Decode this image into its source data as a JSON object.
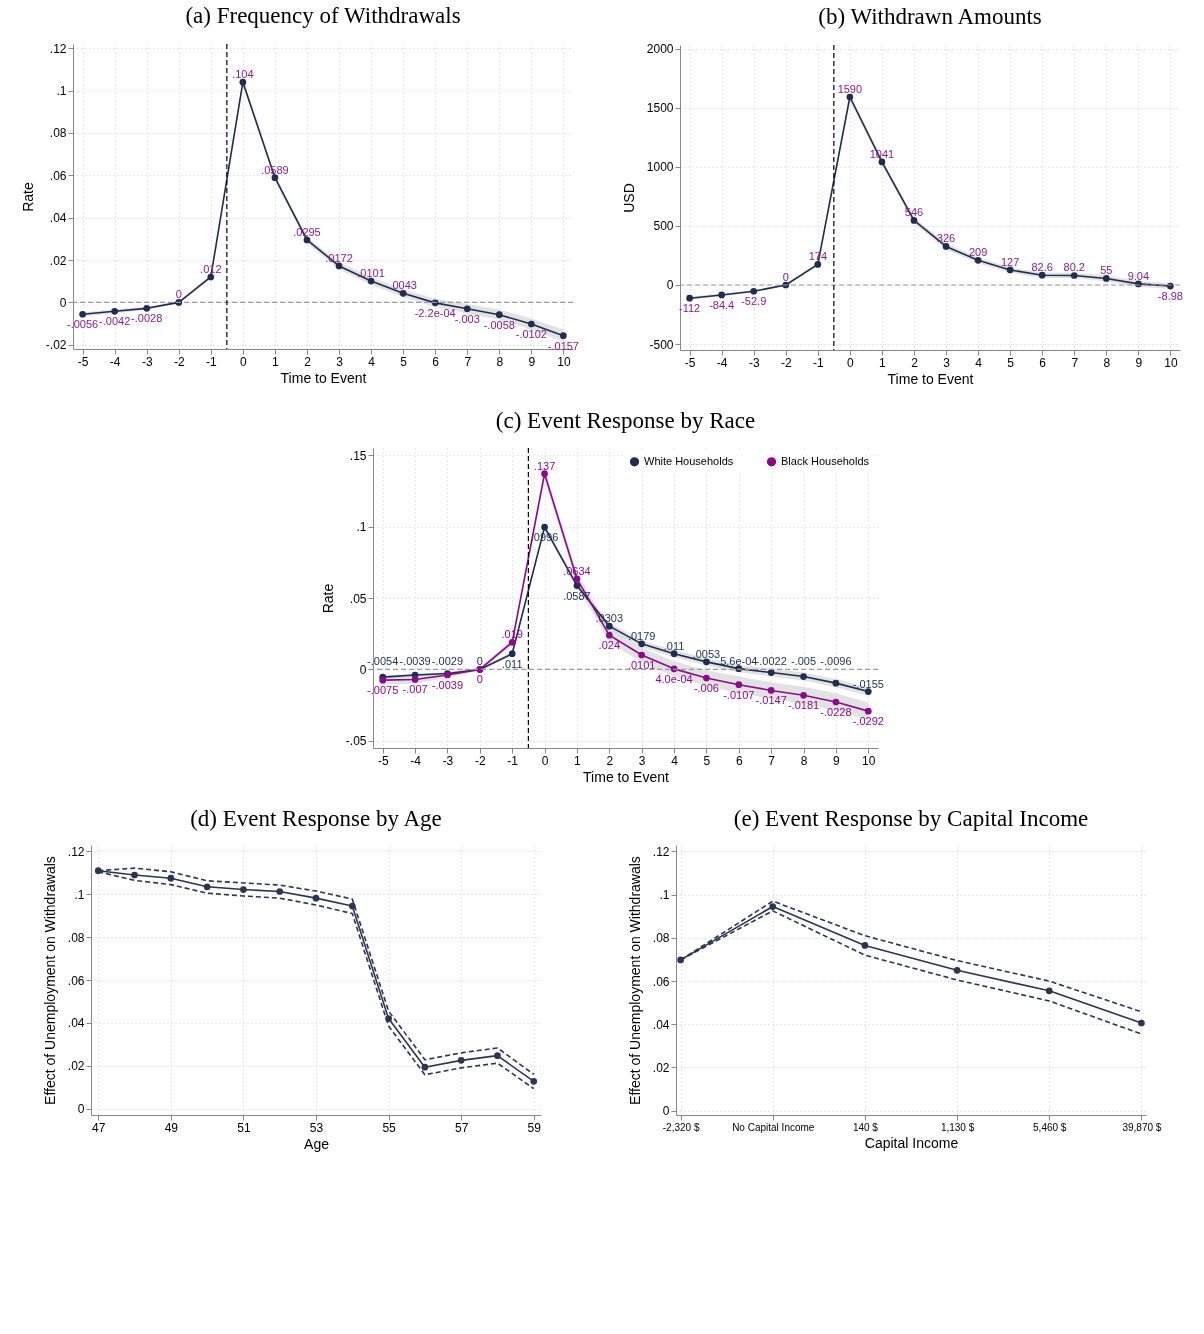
{
  "chart_data": [
    {
      "type": "line",
      "title": "(a) Frequency of Withdrawals",
      "xlabel": "Time to Event",
      "ylabel": "Rate",
      "x": [
        -5,
        -4,
        -3,
        -2,
        -1,
        0,
        1,
        2,
        3,
        4,
        5,
        6,
        7,
        8,
        9,
        10
      ],
      "xlim": [
        -5.3,
        10.3
      ],
      "xticks": [
        -5,
        -4,
        -3,
        -2,
        -1,
        0,
        1,
        2,
        3,
        4,
        5,
        6,
        7,
        8,
        9,
        10
      ],
      "ylim": [
        -0.022,
        0.122
      ],
      "yticks": [
        {
          "value": -0.02,
          "label": "-.02"
        },
        0,
        {
          "value": 0.02,
          "label": ".02"
        },
        {
          "value": 0.04,
          "label": ".04"
        },
        {
          "value": 0.06,
          "label": ".06"
        },
        {
          "value": 0.08,
          "label": ".08"
        },
        {
          "value": 0.1,
          "label": ".1"
        },
        {
          "value": 0.12,
          "label": ".12"
        }
      ],
      "grid": true,
      "marker": "circle",
      "legend": false,
      "series": [
        {
          "color": "#1f2d4f",
          "values": [
            -0.0056,
            -0.0042,
            -0.0028,
            0,
            0.012,
            0.104,
            0.0589,
            0.0295,
            0.0172,
            0.0101,
            0.0043,
            -0.00022,
            -0.003,
            -0.0058,
            -0.0102,
            -0.0157
          ],
          "value_labels": [
            "-.0056",
            "-.0042",
            "-.0028",
            "0",
            ".012",
            ".104",
            ".0589",
            ".0295",
            ".0172",
            ".0101",
            ".0043",
            "-2.2e-04",
            "-.003",
            "-.0058",
            "-.0102",
            "-.0157"
          ],
          "lower": [
            -0.0066,
            -0.0051,
            -0.0036,
            -0.0006,
            0.011,
            0.1025,
            0.0575,
            0.028,
            0.0155,
            0.0083,
            0.0025,
            -0.0022,
            -0.0052,
            -0.0082,
            -0.0128,
            -0.0185
          ],
          "upper": [
            -0.0046,
            -0.0033,
            -0.002,
            0.0006,
            0.013,
            0.1055,
            0.0603,
            0.031,
            0.0189,
            0.0119,
            0.0061,
            0.0018,
            -0.0008,
            -0.0034,
            -0.0076,
            -0.0129
          ]
        }
      ],
      "ref_lines": [
        {
          "axis": "y",
          "value": 0,
          "color": "#999999",
          "line_style": "dashed"
        },
        {
          "axis": "x",
          "value": -0.5,
          "color": "#000000",
          "line_style": "dashed"
        }
      ]
    },
    {
      "type": "line",
      "title": "(b) Withdrawn Amounts",
      "xlabel": "Time to Event",
      "ylabel": "USD",
      "x": [
        -5,
        -4,
        -3,
        -2,
        -1,
        0,
        1,
        2,
        3,
        4,
        5,
        6,
        7,
        8,
        9,
        10
      ],
      "xlim": [
        -5.3,
        10.3
      ],
      "xticks": [
        -5,
        -4,
        -3,
        -2,
        -1,
        0,
        1,
        2,
        3,
        4,
        5,
        6,
        7,
        8,
        9,
        10
      ],
      "ylim": [
        -550,
        2030
      ],
      "yticks": [
        -500,
        0,
        500,
        1000,
        1500,
        2000
      ],
      "grid": true,
      "marker": "circle",
      "legend": false,
      "data_labels": true,
      "series": [
        {
          "color": "#1f2d4f",
          "values": [
            -112,
            -84.4,
            -52.9,
            0,
            174,
            1590,
            1041,
            546,
            326,
            209,
            127,
            82.6,
            80.2,
            55,
            9.04,
            -8.98
          ],
          "lower": [
            -125,
            -96,
            -63,
            -8,
            160,
            1565,
            1015,
            520,
            300,
            183,
            103,
            60,
            58,
            30,
            -15,
            -35
          ],
          "upper": [
            -99,
            -73,
            -43,
            8,
            188,
            1615,
            1067,
            572,
            352,
            235,
            151,
            105,
            102,
            80,
            33,
            17
          ]
        }
      ],
      "ref_lines": [
        {
          "axis": "y",
          "value": 0,
          "color": "#999999",
          "line_style": "dashed"
        },
        {
          "axis": "x",
          "value": -0.5,
          "color": "#000000",
          "line_style": "dashed"
        }
      ]
    },
    {
      "type": "line",
      "title": "(c) Event Response by Race",
      "xlabel": "Time to Event",
      "ylabel": "Rate",
      "x": [
        -5,
        -4,
        -3,
        -2,
        -1,
        0,
        1,
        2,
        3,
        4,
        5,
        6,
        7,
        8,
        9,
        10
      ],
      "xlim": [
        -5.3,
        10.3
      ],
      "xticks": [
        -5,
        -4,
        -3,
        -2,
        -1,
        0,
        1,
        2,
        3,
        4,
        5,
        6,
        7,
        8,
        9,
        10
      ],
      "ylim": [
        -0.055,
        0.155
      ],
      "yticks": [
        {
          "value": -0.05,
          "label": "-.05"
        },
        0,
        {
          "value": 0.05,
          "label": ".05"
        },
        {
          "value": 0.1,
          "label": ".1"
        },
        {
          "value": 0.15,
          "label": ".15"
        }
      ],
      "grid": true,
      "marker": "circle",
      "legend": "top right",
      "series": [
        {
          "name": "White Households",
          "color": "#1f2d4f",
          "values": [
            -0.0054,
            -0.0039,
            -0.0029,
            0,
            0.011,
            0.0996,
            0.0587,
            0.0303,
            0.0179,
            0.011,
            0.0053,
            0.00056,
            -0.0022,
            -0.005,
            -0.0096,
            -0.0155
          ],
          "value_labels": [
            "-.0054",
            "-.0039",
            "-.0029",
            "0",
            ".011",
            ".0996",
            ".0587",
            ".0303",
            ".0179",
            ".011",
            ".0053",
            "5.6e-04",
            "-.0022",
            "-.005",
            "-.0096",
            "-.0155"
          ],
          "lower": [
            -0.0064,
            -0.0049,
            -0.0039,
            -0.001,
            0.0095,
            0.0975,
            0.0565,
            0.028,
            0.0155,
            0.0085,
            0.0027,
            -0.002,
            -0.005,
            -0.0078,
            -0.0125,
            -0.0185
          ],
          "upper": [
            -0.0044,
            -0.0029,
            -0.0019,
            0.001,
            0.0125,
            0.1017,
            0.0609,
            0.0326,
            0.0203,
            0.0135,
            0.0079,
            0.0031,
            0.0006,
            -0.0022,
            -0.0067,
            -0.0125
          ]
        },
        {
          "name": "Black Households",
          "color": "#8b0a8b",
          "values": [
            -0.0075,
            -0.007,
            -0.0039,
            0,
            0.019,
            0.137,
            0.0634,
            0.024,
            0.0101,
            0.0004,
            -0.006,
            -0.0107,
            -0.0147,
            -0.0181,
            -0.0228,
            -0.0292
          ],
          "value_labels": [
            "-.0075",
            "-.007",
            "-.0039",
            "0",
            ".019",
            ".137",
            ".0634",
            ".024",
            ".0101",
            "4.0e-04",
            "-.006",
            "-.0107",
            "-.0147",
            "-.0181",
            "-.0228",
            "-.0292"
          ],
          "lower": [
            -0.0105,
            -0.01,
            -0.0059,
            -0.001,
            0.0165,
            0.133,
            0.059,
            0.019,
            0.005,
            -0.005,
            -0.0115,
            -0.0165,
            -0.0205,
            -0.024,
            -0.029,
            -0.0352
          ],
          "upper": [
            -0.0045,
            -0.004,
            -0.0019,
            0.001,
            0.0215,
            0.141,
            0.0678,
            0.029,
            0.0152,
            0.0058,
            -0.0005,
            -0.0049,
            -0.0089,
            -0.0122,
            -0.0166,
            -0.0232
          ]
        }
      ],
      "ref_lines": [
        {
          "axis": "y",
          "value": 0,
          "color": "#999999",
          "line_style": "dashed"
        },
        {
          "axis": "x",
          "value": -0.5,
          "color": "#000000",
          "line_style": "dashed"
        }
      ]
    },
    {
      "type": "line",
      "title": "(d) Event Response by Age",
      "xlabel": "Age",
      "ylabel": "Effect of Unemployment on Withdrawals",
      "x": [
        47,
        48,
        49,
        50,
        51,
        52,
        53,
        54,
        55,
        56,
        57,
        58,
        59
      ],
      "xlim": [
        46.8,
        59.2
      ],
      "xticks": [
        47,
        49,
        51,
        53,
        55,
        57,
        59
      ],
      "ylim": [
        -0.003,
        0.123
      ],
      "yticks": [
        0,
        {
          "value": 0.02,
          "label": ".02"
        },
        {
          "value": 0.04,
          "label": ".04"
        },
        {
          "value": 0.06,
          "label": ".06"
        },
        {
          "value": 0.08,
          "label": ".08"
        },
        {
          "value": 0.1,
          "label": ".1"
        },
        {
          "value": 0.12,
          "label": ".12"
        }
      ],
      "grid": true,
      "marker": "circle",
      "legend": false,
      "series": [
        {
          "color": "#2b3452",
          "values": [
            0.111,
            0.109,
            0.1075,
            0.1035,
            0.1022,
            0.1013,
            0.0982,
            0.0945,
            0.042,
            0.0193,
            0.0225,
            0.0247,
            0.0127
          ]
        },
        {
          "color": "#2b3452",
          "line_style": "dashed",
          "marker": "none",
          "values": [
            0.111,
            0.1122,
            0.1105,
            0.1063,
            0.1053,
            0.1043,
            0.1015,
            0.0978,
            0.0455,
            0.0228,
            0.026,
            0.0283,
            0.016
          ]
        },
        {
          "color": "#2b3452",
          "line_style": "dashed",
          "marker": "none",
          "values": [
            0.1105,
            0.1065,
            0.1045,
            0.1005,
            0.0992,
            0.0982,
            0.095,
            0.091,
            0.0385,
            0.0158,
            0.019,
            0.0212,
            0.0093
          ]
        }
      ]
    },
    {
      "type": "line",
      "title": "(e) Event Response by Capital Income",
      "xlabel": "Capital Income",
      "ylabel": "Effect of Unemployment on Withdrawals",
      "categories": [
        "-2,320 $",
        "No Capital Income",
        "140 $",
        "1,130 $",
        "5,460 $",
        "39,870 $"
      ],
      "ylim": [
        -0.002,
        0.123
      ],
      "yticks": [
        0,
        {
          "value": 0.02,
          "label": ".02"
        },
        {
          "value": 0.04,
          "label": ".04"
        },
        {
          "value": 0.06,
          "label": ".06"
        },
        {
          "value": 0.08,
          "label": ".08"
        },
        {
          "value": 0.1,
          "label": ".1"
        },
        {
          "value": 0.12,
          "label": ".12"
        }
      ],
      "grid": true,
      "marker": "circle",
      "legend": false,
      "series": [
        {
          "color": "#2b3452",
          "values": [
            0.0698,
            0.0945,
            0.0765,
            0.065,
            0.0555,
            0.0406
          ]
        },
        {
          "color": "#2b3452",
          "line_style": "dashed",
          "marker": "none",
          "values": [
            0.0698,
            0.097,
            0.081,
            0.0695,
            0.06,
            0.0458
          ]
        },
        {
          "color": "#2b3452",
          "line_style": "dashed",
          "marker": "none",
          "values": [
            0.0698,
            0.0925,
            0.072,
            0.0605,
            0.0508,
            0.0355
          ]
        }
      ]
    }
  ]
}
